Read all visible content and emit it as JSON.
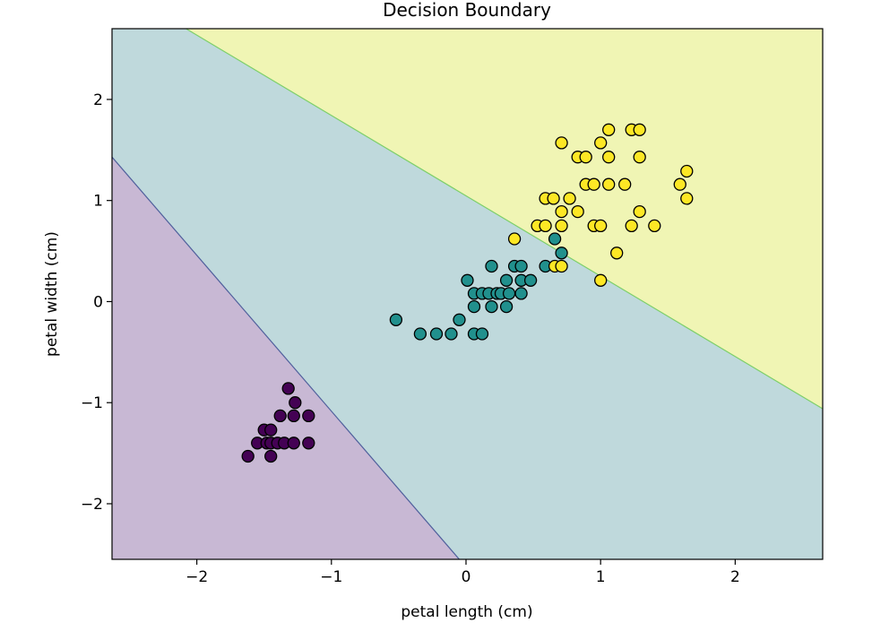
{
  "chart_data": {
    "type": "scatter",
    "title": "Decision Boundary",
    "xlabel": "petal length (cm)",
    "ylabel": "petal width (cm)",
    "xlim": [
      -2.63,
      2.65
    ],
    "ylim": [
      -2.55,
      2.7
    ],
    "x_ticks": [
      -2,
      -1,
      0,
      1,
      2
    ],
    "y_ticks": [
      -2,
      -1,
      0,
      1,
      2
    ],
    "x_tick_labels": [
      "−2",
      "−1",
      "0",
      "1",
      "2"
    ],
    "y_tick_labels": [
      "−2",
      "−1",
      "0",
      "1",
      "2"
    ],
    "regions": [
      {
        "class": 0,
        "color": "#c8b8d4"
      },
      {
        "class": 1,
        "color": "#bfd9dc"
      },
      {
        "class": 2,
        "color": "#f0f5b4"
      }
    ],
    "boundaries": [
      {
        "name": "boundary-0-1",
        "from": [
          -2.63,
          1.43
        ],
        "to": [
          -0.05,
          -2.55
        ],
        "color": "#4f5f9c"
      },
      {
        "name": "boundary-1-2",
        "from": [
          -2.08,
          2.7
        ],
        "to": [
          2.65,
          -1.06
        ],
        "color": "#7dcf6a"
      }
    ],
    "series": [
      {
        "name": "class-0",
        "color": "#440154",
        "points": [
          [
            -1.62,
            -1.53
          ],
          [
            -1.55,
            -1.4
          ],
          [
            -1.5,
            -1.27
          ],
          [
            -1.48,
            -1.4
          ],
          [
            -1.45,
            -1.27
          ],
          [
            -1.45,
            -1.4
          ],
          [
            -1.45,
            -1.53
          ],
          [
            -1.4,
            -1.4
          ],
          [
            -1.38,
            -1.13
          ],
          [
            -1.35,
            -1.4
          ],
          [
            -1.32,
            -0.86
          ],
          [
            -1.28,
            -1.4
          ],
          [
            -1.28,
            -1.13
          ],
          [
            -1.27,
            -1.0
          ],
          [
            -1.17,
            -1.13
          ],
          [
            -1.17,
            -1.4
          ]
        ]
      },
      {
        "name": "class-1",
        "color": "#21908d",
        "points": [
          [
            -0.52,
            -0.18
          ],
          [
            -0.34,
            -0.32
          ],
          [
            -0.22,
            -0.32
          ],
          [
            -0.11,
            -0.32
          ],
          [
            -0.05,
            -0.18
          ],
          [
            0.01,
            0.21
          ],
          [
            0.06,
            0.08
          ],
          [
            0.06,
            -0.05
          ],
          [
            0.06,
            -0.32
          ],
          [
            0.12,
            0.08
          ],
          [
            0.12,
            -0.32
          ],
          [
            0.17,
            0.08
          ],
          [
            0.19,
            0.35
          ],
          [
            0.19,
            -0.05
          ],
          [
            0.23,
            0.08
          ],
          [
            0.26,
            0.08
          ],
          [
            0.3,
            0.21
          ],
          [
            0.3,
            -0.05
          ],
          [
            0.32,
            0.08
          ],
          [
            0.36,
            0.35
          ],
          [
            0.41,
            0.35
          ],
          [
            0.41,
            0.21
          ],
          [
            0.41,
            0.08
          ],
          [
            0.48,
            0.21
          ],
          [
            0.59,
            0.35
          ],
          [
            0.66,
            0.62
          ],
          [
            0.71,
            0.48
          ]
        ]
      },
      {
        "name": "class-2",
        "color": "#fde725",
        "points": [
          [
            0.36,
            0.62
          ],
          [
            0.53,
            0.75
          ],
          [
            0.59,
            0.75
          ],
          [
            0.59,
            1.02
          ],
          [
            0.65,
            1.02
          ],
          [
            0.66,
            0.35
          ],
          [
            0.71,
            1.57
          ],
          [
            0.71,
            0.89
          ],
          [
            0.71,
            0.75
          ],
          [
            0.71,
            0.35
          ],
          [
            0.77,
            1.02
          ],
          [
            0.83,
            0.89
          ],
          [
            0.83,
            1.43
          ],
          [
            0.89,
            1.43
          ],
          [
            0.89,
            1.16
          ],
          [
            0.95,
            1.16
          ],
          [
            0.95,
            0.75
          ],
          [
            1.0,
            1.57
          ],
          [
            1.0,
            0.75
          ],
          [
            1.0,
            0.21
          ],
          [
            1.06,
            1.7
          ],
          [
            1.06,
            1.43
          ],
          [
            1.06,
            1.16
          ],
          [
            1.12,
            0.48
          ],
          [
            1.18,
            1.16
          ],
          [
            1.23,
            1.7
          ],
          [
            1.23,
            0.75
          ],
          [
            1.29,
            1.7
          ],
          [
            1.29,
            1.43
          ],
          [
            1.29,
            0.89
          ],
          [
            1.4,
            0.75
          ],
          [
            1.59,
            1.16
          ],
          [
            1.64,
            1.29
          ],
          [
            1.64,
            1.02
          ]
        ]
      }
    ]
  }
}
